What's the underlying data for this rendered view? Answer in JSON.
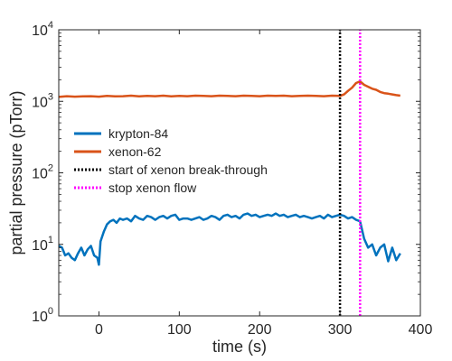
{
  "chart_data": {
    "type": "line",
    "title": "",
    "xlabel": "time (s)",
    "ylabel": "partial pressure (pTorr)",
    "yscale": "log",
    "xlim": [
      -50,
      400
    ],
    "ylim": [
      1,
      10000
    ],
    "xticks": [
      0,
      100,
      200,
      300,
      400
    ],
    "xtick_labels": [
      "0",
      "100",
      "200",
      "300",
      "400"
    ],
    "yticks": [
      1,
      10,
      100,
      1000,
      10000
    ],
    "ytick_labels": [
      {
        "base": "10",
        "exp": "0"
      },
      {
        "base": "10",
        "exp": "1"
      },
      {
        "base": "10",
        "exp": "2"
      },
      {
        "base": "10",
        "exp": "3"
      },
      {
        "base": "10",
        "exp": "4"
      }
    ],
    "grid": false,
    "legend": {
      "position": "center-left",
      "entries": [
        {
          "label": "krypton-84",
          "color": "#0072BD",
          "style": "solid"
        },
        {
          "label": "xenon-62",
          "color": "#D95319",
          "style": "solid"
        },
        {
          "label": "start of xenon break-through",
          "color": "#000000",
          "style": "dotted"
        },
        {
          "label": "stop xenon flow",
          "color": "#FF00FF",
          "style": "dotted"
        }
      ]
    },
    "series": [
      {
        "name": "krypton-84",
        "color": "#0072BD",
        "x": [
          -50,
          -46,
          -42,
          -38,
          -34,
          -30,
          -26,
          -22,
          -18,
          -14,
          -10,
          -6,
          -2,
          0,
          2,
          6,
          10,
          14,
          18,
          22,
          26,
          30,
          35,
          40,
          45,
          50,
          55,
          60,
          65,
          70,
          75,
          80,
          85,
          90,
          95,
          100,
          105,
          110,
          115,
          120,
          125,
          130,
          135,
          140,
          145,
          150,
          155,
          160,
          165,
          170,
          175,
          180,
          185,
          190,
          195,
          200,
          205,
          210,
          215,
          220,
          225,
          230,
          235,
          240,
          245,
          250,
          255,
          260,
          265,
          270,
          275,
          280,
          285,
          290,
          295,
          300,
          305,
          310,
          315,
          320,
          325,
          330,
          335,
          340,
          345,
          350,
          355,
          360,
          365,
          370,
          375
        ],
        "y": [
          9.5,
          9.0,
          7.0,
          7.5,
          6.5,
          6.0,
          7.5,
          9.0,
          7.0,
          8.5,
          9.5,
          7.0,
          6.5,
          5.2,
          11,
          15,
          19,
          21,
          22,
          20,
          23,
          22,
          23,
          21,
          25,
          23,
          22,
          25,
          24,
          22,
          24,
          25,
          23,
          25,
          26,
          22,
          23,
          23,
          22,
          23,
          24,
          22,
          23,
          25,
          24,
          22,
          25,
          26,
          24,
          25,
          23,
          26,
          27,
          25,
          26,
          24,
          25,
          26,
          25,
          27,
          25,
          26,
          24,
          25,
          26,
          24,
          25,
          24,
          23,
          24,
          25,
          23,
          26,
          24,
          25,
          26,
          25,
          23,
          24,
          22,
          21,
          12,
          9,
          10,
          7,
          9,
          10,
          5.8,
          9,
          6,
          7.5
        ]
      },
      {
        "name": "xenon-62",
        "color": "#D95319",
        "x": [
          -50,
          -40,
          -30,
          -20,
          -10,
          0,
          10,
          20,
          30,
          40,
          50,
          60,
          70,
          80,
          90,
          100,
          110,
          120,
          130,
          140,
          150,
          160,
          170,
          180,
          190,
          200,
          210,
          220,
          230,
          240,
          250,
          260,
          270,
          280,
          290,
          300,
          305,
          310,
          315,
          320,
          325,
          330,
          335,
          340,
          345,
          350,
          355,
          360,
          365,
          370,
          375
        ],
        "y": [
          1150,
          1180,
          1160,
          1170,
          1180,
          1160,
          1190,
          1170,
          1180,
          1200,
          1170,
          1190,
          1180,
          1200,
          1170,
          1190,
          1180,
          1200,
          1190,
          1180,
          1200,
          1190,
          1180,
          1200,
          1190,
          1180,
          1200,
          1190,
          1200,
          1180,
          1190,
          1200,
          1190,
          1180,
          1200,
          1190,
          1250,
          1400,
          1550,
          1800,
          1900,
          1700,
          1600,
          1500,
          1450,
          1350,
          1300,
          1280,
          1250,
          1220,
          1200
        ]
      },
      {
        "name": "start of xenon break-through",
        "color": "#000000",
        "x": [
          300,
          300
        ],
        "y": [
          1,
          10000
        ]
      },
      {
        "name": "stop xenon flow",
        "color": "#FF00FF",
        "x": [
          325,
          325
        ],
        "y": [
          1,
          10000
        ]
      }
    ]
  }
}
